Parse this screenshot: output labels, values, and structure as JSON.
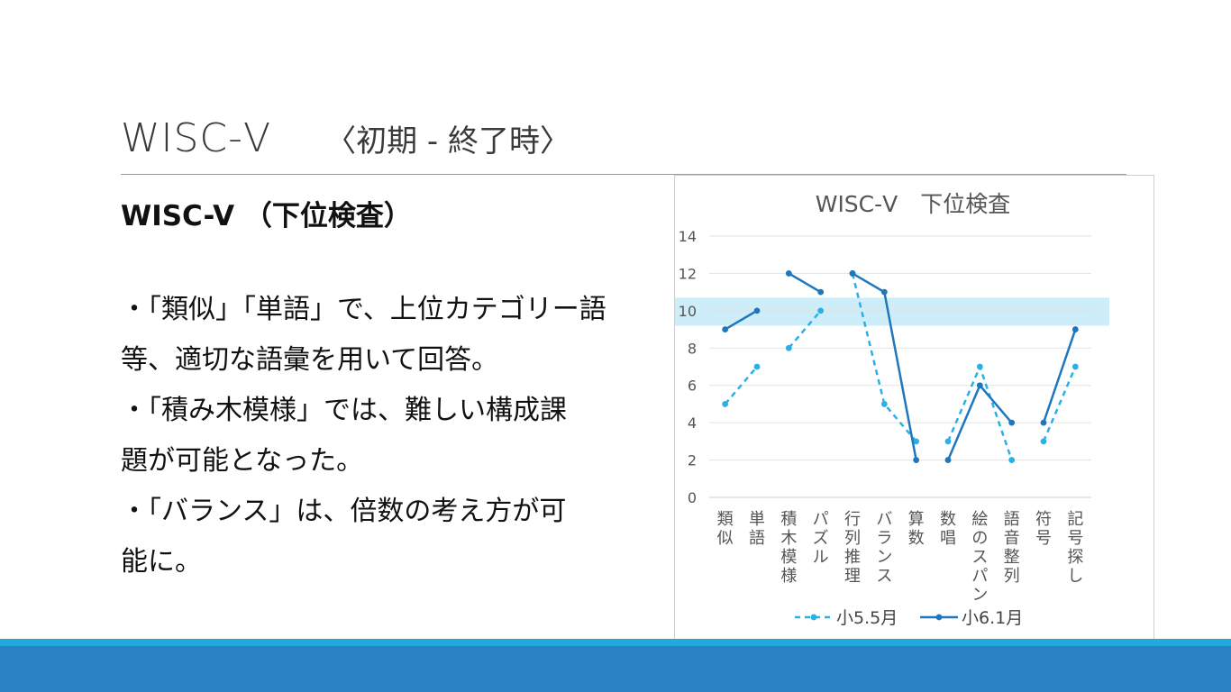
{
  "slide": {
    "title": "WISC-Ⅴ",
    "subtitle": "〈初期 - 終了時〉",
    "heading": "WISC-V （下位検査）",
    "bullets": [
      "・「類似」「単語」で、上位カテゴリー語",
      "等、適切な語彙を用いて回答。",
      "・「積み木模様」では、難しい構成課",
      "題が可能となった。",
      "・「バランス」は、倍数の考え方が可",
      "能に。"
    ]
  },
  "colors": {
    "series1": "#2ab0e4",
    "series2": "#1e77be",
    "band": "#cdeef8",
    "footer_light": "#1fa9dc",
    "footer_dark": "#2a82c4"
  },
  "chart_data": {
    "type": "line",
    "title": "WISC-Ⅴ　下位検査",
    "categories": [
      "類似",
      "単語",
      "積木模様",
      "パズル",
      "行列推理",
      "バランス",
      "算数",
      "数唱",
      "絵のスパン",
      "語音整列",
      "符号",
      "記号探し"
    ],
    "segments": [
      [
        0,
        1
      ],
      [
        2,
        3
      ],
      [
        4,
        5,
        6
      ],
      [
        7,
        8,
        9
      ],
      [
        10,
        11
      ]
    ],
    "ylim": [
      0,
      14
    ],
    "yticks": [
      0,
      2,
      4,
      6,
      8,
      10,
      12,
      14
    ],
    "band": [
      9.2,
      10.7
    ],
    "grid": true,
    "legend_position": "bottom",
    "series": [
      {
        "name": "小5.5月",
        "style": "dashed",
        "values": [
          5,
          7,
          8,
          10,
          12,
          5,
          3,
          3,
          7,
          2,
          3,
          7
        ]
      },
      {
        "name": "小6.1月",
        "style": "solid",
        "values": [
          9,
          10,
          12,
          11,
          12,
          11,
          2,
          2,
          6,
          4,
          4,
          9
        ]
      }
    ]
  }
}
